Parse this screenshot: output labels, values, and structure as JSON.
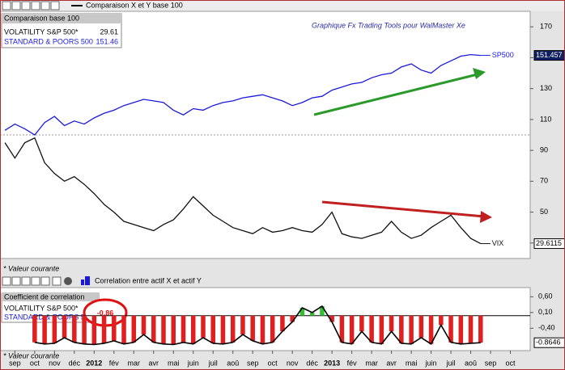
{
  "window_title": "Comparaison X et Y base 100",
  "footnote_top": "* Valeur courante",
  "footnote_bottom": "* Valeur courante",
  "chart_data": [
    {
      "type": "line",
      "annotation": "Graphique Fx Trading Tools pour WalMaster Xe",
      "legend_title": "Comparaison base 100",
      "legend_values": [
        "29.61",
        "151.46"
      ],
      "base_line": 100,
      "x": [
        -0.5,
        0,
        0.5,
        1,
        1.5,
        2,
        2.5,
        3,
        3.5,
        4,
        4.5,
        5,
        5.5,
        6,
        6.5,
        7,
        7.5,
        8,
        8.5,
        9,
        9.5,
        10,
        10.5,
        11,
        11.5,
        12,
        12.5,
        13,
        13.5,
        14,
        14.5,
        15,
        15.5,
        16,
        16.5,
        17,
        17.5,
        18,
        18.5,
        19,
        19.5,
        20,
        20.5,
        21,
        21.5,
        22,
        22.5,
        23,
        23.5
      ],
      "xlim": [
        -0.75,
        26
      ],
      "ylim": [
        21,
        179
      ],
      "yticks": [
        30,
        50,
        70,
        90,
        110,
        130,
        150,
        170
      ],
      "series": [
        {
          "name": "VOLATILITY S&P 500*",
          "color": "#111111",
          "end_label": "VIX",
          "last_label": "29.6115",
          "values": [
            95,
            85,
            95,
            98,
            82,
            75,
            70,
            73,
            68,
            62,
            55,
            50,
            44,
            42,
            40,
            38,
            42,
            45,
            52,
            60,
            54,
            48,
            44,
            40,
            38,
            36,
            40,
            37,
            38,
            40,
            38,
            37,
            42,
            50,
            36,
            34,
            33,
            35,
            37,
            44,
            37,
            33,
            35,
            40,
            44,
            48,
            40,
            33,
            29.6
          ]
        },
        {
          "name": "STANDARD & POORS 500",
          "color": "#1a1adc",
          "end_label": "SP500",
          "last_label": "151.457",
          "values": [
            103,
            107,
            104,
            100,
            108,
            112,
            106,
            109,
            107,
            111,
            114,
            116,
            119,
            121,
            123,
            122,
            121,
            116,
            113,
            117,
            116,
            119,
            121,
            122,
            124,
            125,
            126,
            124,
            122,
            119,
            121,
            124,
            125,
            129,
            131,
            133,
            134,
            137,
            139,
            140,
            144,
            146,
            142,
            140,
            145,
            148,
            151,
            152,
            151.5
          ]
        }
      ]
    },
    {
      "type": "bar",
      "title": "Correlation entre actif X et actif Y",
      "legend_title": "Coefficient de correlation",
      "legend_items": [
        "VOLATILITY S&P 500*",
        "STANDARD & POORS 500"
      ],
      "current_badge": "-0.86",
      "last_label": "-0.8646",
      "negative_color": "#e02020",
      "positive_color": "#30c030",
      "x": [
        1,
        1.5,
        2,
        2.5,
        3,
        3.5,
        4,
        4.5,
        5,
        5.5,
        6,
        6.5,
        7,
        7.5,
        8,
        8.5,
        9,
        9.5,
        10,
        10.5,
        11,
        11.5,
        12,
        12.5,
        13,
        13.5,
        14,
        14.5,
        15,
        15.5,
        16,
        16.5,
        17,
        17.5,
        18,
        18.5,
        19,
        19.5,
        20,
        20.5,
        21,
        21.5,
        22,
        22.5,
        23,
        23.5
      ],
      "values": [
        -0.85,
        -0.9,
        -0.88,
        -0.7,
        -0.85,
        -0.9,
        -0.92,
        -0.88,
        -0.8,
        -0.9,
        -0.85,
        -0.6,
        -0.85,
        -0.9,
        -0.92,
        -0.85,
        -0.9,
        -0.7,
        -0.88,
        -0.9,
        -0.85,
        -0.6,
        -0.8,
        -0.9,
        -0.85,
        -0.5,
        -0.2,
        0.25,
        0.1,
        0.3,
        -0.2,
        -0.85,
        -0.9,
        -0.5,
        -0.85,
        -0.9,
        -0.5,
        -0.88,
        -0.9,
        -0.7,
        -0.9,
        -0.3,
        -0.85,
        -0.9,
        -0.88,
        -0.86
      ],
      "xlim": [
        -0.75,
        26
      ],
      "ylim": [
        -1.06,
        0.84
      ],
      "yticks": [
        {
          "value": -0.4,
          "label": "-0,40"
        },
        {
          "value": 0.1,
          "label": "0,10"
        },
        {
          "value": 0.6,
          "label": "0,60"
        }
      ],
      "xticks": [
        {
          "value": 0,
          "label": "sep"
        },
        {
          "value": 1,
          "label": "oct"
        },
        {
          "value": 2,
          "label": "nov"
        },
        {
          "value": 3,
          "label": "déc"
        },
        {
          "value": 4,
          "label": "2012"
        },
        {
          "value": 5,
          "label": "fév"
        },
        {
          "value": 6,
          "label": "mar"
        },
        {
          "value": 7,
          "label": "avr"
        },
        {
          "value": 8,
          "label": "mai"
        },
        {
          "value": 9,
          "label": "juin"
        },
        {
          "value": 10,
          "label": "juil"
        },
        {
          "value": 11,
          "label": "aoû"
        },
        {
          "value": 12,
          "label": "sep"
        },
        {
          "value": 13,
          "label": "oct"
        },
        {
          "value": 14,
          "label": "nov"
        },
        {
          "value": 15,
          "label": "déc"
        },
        {
          "value": 16,
          "label": "2013"
        },
        {
          "value": 17,
          "label": "fév"
        },
        {
          "value": 18,
          "label": "mar"
        },
        {
          "value": 19,
          "label": "avr"
        },
        {
          "value": 20,
          "label": "mai"
        },
        {
          "value": 21,
          "label": "juin"
        },
        {
          "value": 22,
          "label": "juil"
        },
        {
          "value": 23,
          "label": "aoû"
        },
        {
          "value": 24,
          "label": "sep"
        },
        {
          "value": 25,
          "label": "oct"
        }
      ]
    }
  ]
}
